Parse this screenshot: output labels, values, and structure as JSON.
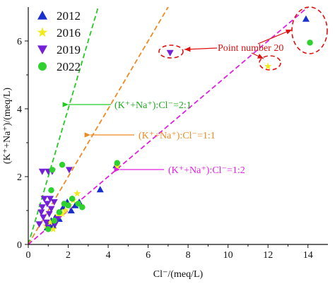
{
  "chart_data": {
    "type": "scatter",
    "xlabel": "Cl⁻/(meq/L)",
    "ylabel": "(K⁺+Na⁺)/(meq/L)",
    "xlim": [
      0,
      15
    ],
    "ylim": [
      0,
      7
    ],
    "xticks": [
      0,
      2,
      4,
      6,
      8,
      10,
      12,
      14
    ],
    "yticks": [
      0,
      2,
      4,
      6
    ],
    "grid": false,
    "legend_position": "top-left",
    "series": [
      {
        "name": "2012",
        "marker": "triangle-up",
        "color": "#1a2fcf",
        "points": [
          [
            0.95,
            0.5
          ],
          [
            1.05,
            0.6
          ],
          [
            1.15,
            0.7
          ],
          [
            1.25,
            0.55
          ],
          [
            1.35,
            0.8
          ],
          [
            1.55,
            0.75
          ],
          [
            1.6,
            0.95
          ],
          [
            1.75,
            1.1
          ],
          [
            1.95,
            1.25
          ],
          [
            2.15,
            1.0
          ],
          [
            2.35,
            1.15
          ],
          [
            2.55,
            1.25
          ],
          [
            3.6,
            1.62
          ],
          [
            4.4,
            2.33
          ],
          [
            13.9,
            6.65
          ]
        ]
      },
      {
        "name": "2016",
        "marker": "star",
        "color": "#f2ea1e",
        "points": [
          [
            0.9,
            0.55
          ],
          [
            1.1,
            0.65
          ],
          [
            1.25,
            0.45
          ],
          [
            1.4,
            0.75
          ],
          [
            1.5,
            0.85
          ],
          [
            1.7,
            0.9
          ],
          [
            1.85,
            1.0
          ],
          [
            2.05,
            1.15
          ],
          [
            2.25,
            1.3
          ],
          [
            2.45,
            1.5
          ],
          [
            4.45,
            2.3
          ],
          [
            12.0,
            5.25
          ]
        ]
      },
      {
        "name": "2019",
        "marker": "triangle-down",
        "color": "#7420d8",
        "points": [
          [
            0.55,
            0.6
          ],
          [
            0.65,
            0.95
          ],
          [
            0.7,
            1.1
          ],
          [
            0.75,
            0.8
          ],
          [
            0.8,
            1.35
          ],
          [
            0.9,
            0.65
          ],
          [
            0.95,
            1.2
          ],
          [
            1.0,
            0.5
          ],
          [
            1.05,
            0.9
          ],
          [
            1.1,
            1.35
          ],
          [
            1.15,
            1.05
          ],
          [
            1.3,
            1.25
          ],
          [
            1.35,
            0.6
          ],
          [
            1.45,
            0.75
          ],
          [
            0.7,
            2.15
          ],
          [
            1.0,
            2.15
          ],
          [
            1.2,
            2.15
          ],
          [
            2.05,
            2.2
          ],
          [
            7.1,
            5.65
          ]
        ]
      },
      {
        "name": "2022",
        "marker": "circle",
        "color": "#2ed12e",
        "points": [
          [
            1.0,
            0.45
          ],
          [
            1.15,
            1.6
          ],
          [
            1.2,
            2.2
          ],
          [
            1.3,
            0.7
          ],
          [
            1.55,
            0.95
          ],
          [
            1.7,
            2.35
          ],
          [
            1.8,
            1.2
          ],
          [
            2.0,
            1.15
          ],
          [
            2.2,
            1.35
          ],
          [
            2.5,
            1.2
          ],
          [
            2.7,
            1.1
          ],
          [
            4.45,
            2.4
          ],
          [
            14.1,
            5.95
          ]
        ]
      }
    ],
    "reference_lines": [
      {
        "label": "(K⁺+Na⁺):Cl⁻=2:1",
        "slope": 2,
        "color": "#22cc22"
      },
      {
        "label": "(K⁺+Na⁺):Cl⁻=1:1",
        "slope": 1,
        "color": "#ee8a22"
      },
      {
        "label": "(K⁺+Na⁺):Cl⁻=1:2",
        "slope": 0.5,
        "color": "#e020e0"
      }
    ],
    "annotation": {
      "text": "Point number 20",
      "color": "#e01010"
    }
  }
}
